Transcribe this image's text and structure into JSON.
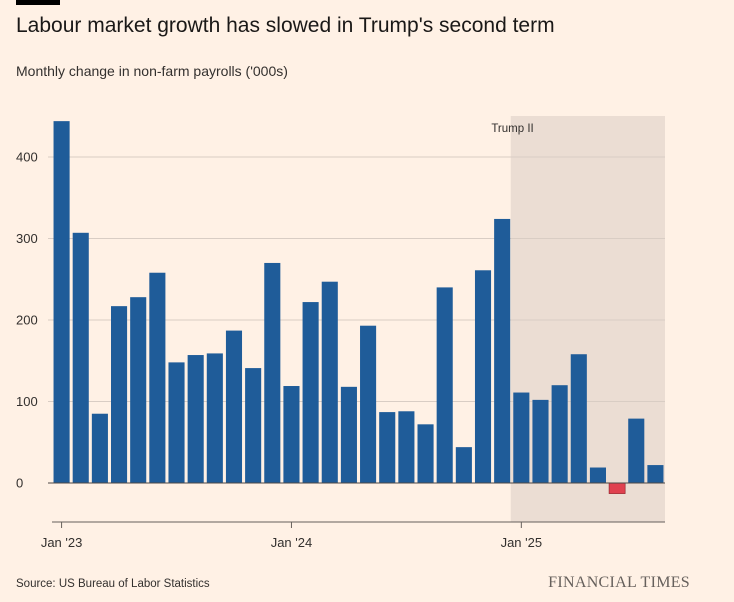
{
  "header": {
    "title": "Labour market growth has slowed in Trump's second term",
    "subtitle": "Monthly change in non-farm payrolls ('000s)"
  },
  "footer": {
    "source": "Source: US Bureau of Labor Statistics",
    "brand": "FINANCIAL TIMES"
  },
  "colors": {
    "background": "#fff1e5",
    "bar_positive": "#1f5c99",
    "bar_negative": "#e0414f",
    "shaded_region": "#ebddd3",
    "gridline": "#d9cdc4",
    "axis": "#66605c",
    "text": "#33302e"
  },
  "chart_data": {
    "type": "bar",
    "title": "Labour market growth has slowed in Trump's second term",
    "ylabel": "Monthly change in non-farm payrolls ('000s)",
    "xlabel": "",
    "ylim": [
      -50,
      450
    ],
    "yticks": [
      0,
      100,
      200,
      300,
      400
    ],
    "x_tick_labels": [
      {
        "label": "Jan '23",
        "index": 0
      },
      {
        "label": "Jan '24",
        "index": 12
      },
      {
        "label": "Jan '25",
        "index": 24
      }
    ],
    "categories": [
      "Jan 2023",
      "Feb 2023",
      "Mar 2023",
      "Apr 2023",
      "May 2023",
      "Jun 2023",
      "Jul 2023",
      "Aug 2023",
      "Sep 2023",
      "Oct 2023",
      "Nov 2023",
      "Dec 2023",
      "Jan 2024",
      "Feb 2024",
      "Mar 2024",
      "Apr 2024",
      "May 2024",
      "Jun 2024",
      "Jul 2024",
      "Aug 2024",
      "Sep 2024",
      "Oct 2024",
      "Nov 2024",
      "Dec 2024",
      "Jan 2025",
      "Feb 2025",
      "Mar 2025",
      "Apr 2025",
      "May 2025",
      "Jun 2025",
      "Jul 2025",
      "Aug 2025"
    ],
    "values": [
      444,
      307,
      85,
      217,
      228,
      258,
      148,
      157,
      159,
      187,
      141,
      270,
      119,
      222,
      247,
      118,
      193,
      87,
      88,
      72,
      240,
      44,
      261,
      324,
      111,
      102,
      120,
      158,
      19,
      -13,
      79,
      22
    ],
    "annotations": [
      {
        "label": "Trump II",
        "shaded_from_index": 24,
        "shaded_to_index": 31
      }
    ],
    "grid": true
  }
}
